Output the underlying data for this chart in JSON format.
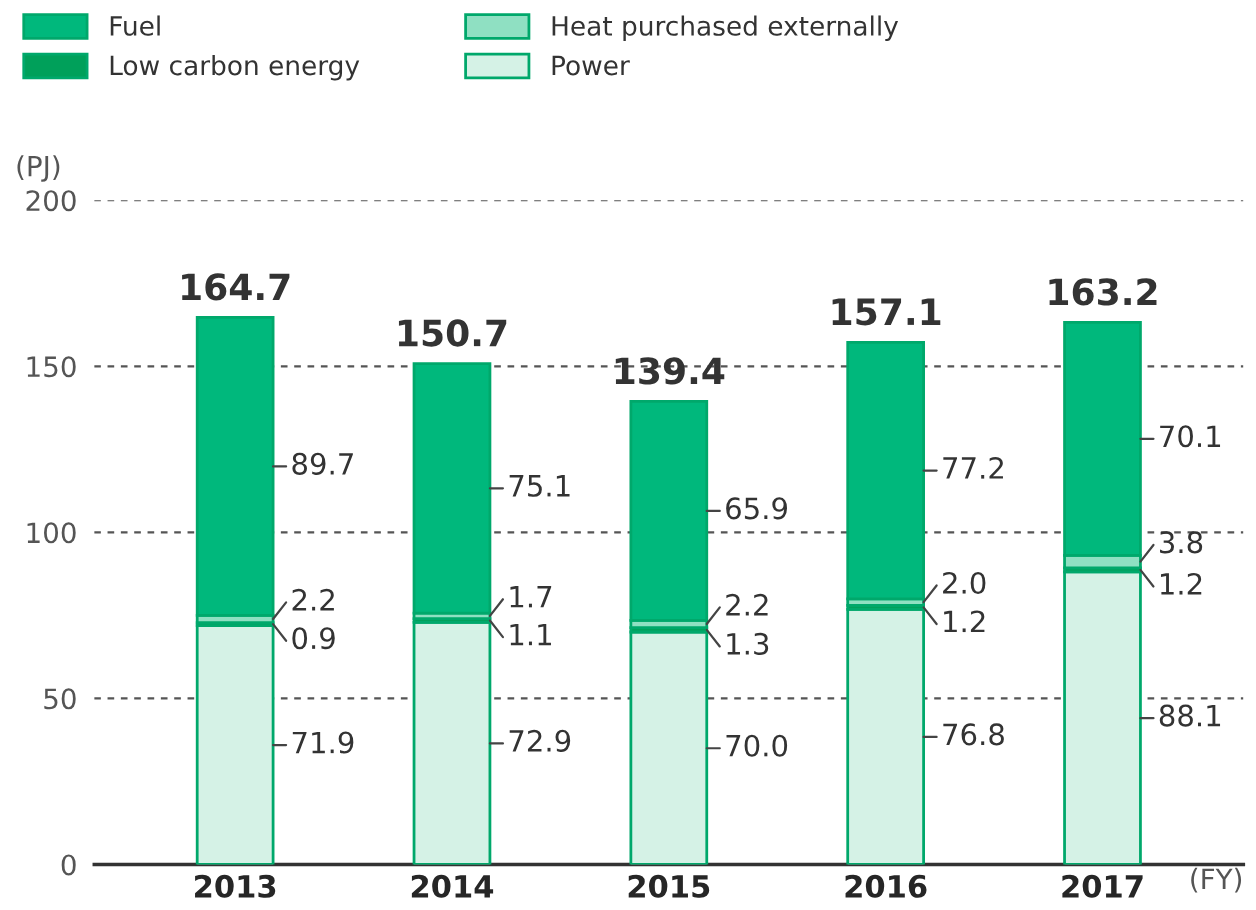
{
  "chart_data": {
    "type": "bar",
    "stacked": true,
    "categories": [
      "2013",
      "2014",
      "2015",
      "2016",
      "2017"
    ],
    "series": [
      {
        "name": "Power",
        "color": "#d5f2e6",
        "values": [
          71.9,
          72.9,
          70.0,
          76.8,
          88.1
        ],
        "value_labels": [
          "71.9",
          "72.9",
          "70.0",
          "76.8",
          "88.1"
        ]
      },
      {
        "name": "Low carbon energy",
        "color": "#00a05a",
        "values": [
          0.9,
          1.1,
          1.3,
          1.2,
          1.2
        ],
        "value_labels": [
          "0.9",
          "1.1",
          "1.3",
          "1.2",
          "1.2"
        ]
      },
      {
        "name": "Heat purchased externally",
        "color": "#8fe0c2",
        "values": [
          2.2,
          1.7,
          2.2,
          2.0,
          3.8
        ],
        "value_labels": [
          "2.2",
          "1.7",
          "2.2",
          "2.0",
          "3.8"
        ]
      },
      {
        "name": "Fuel",
        "color": "#00b87c",
        "values": [
          89.7,
          75.1,
          65.9,
          77.2,
          70.1
        ],
        "value_labels": [
          "89.7",
          "75.1",
          "65.9",
          "77.2",
          "70.1"
        ]
      }
    ],
    "totals": [
      "164.7",
      "150.7",
      "139.4",
      "157.1",
      "163.2"
    ],
    "ylabel": "(PJ)",
    "xlabel": "(FY)",
    "ylim": [
      0,
      200
    ],
    "yticks": [
      0,
      50,
      100,
      150,
      200
    ],
    "grid": "y",
    "legend": "top left"
  }
}
